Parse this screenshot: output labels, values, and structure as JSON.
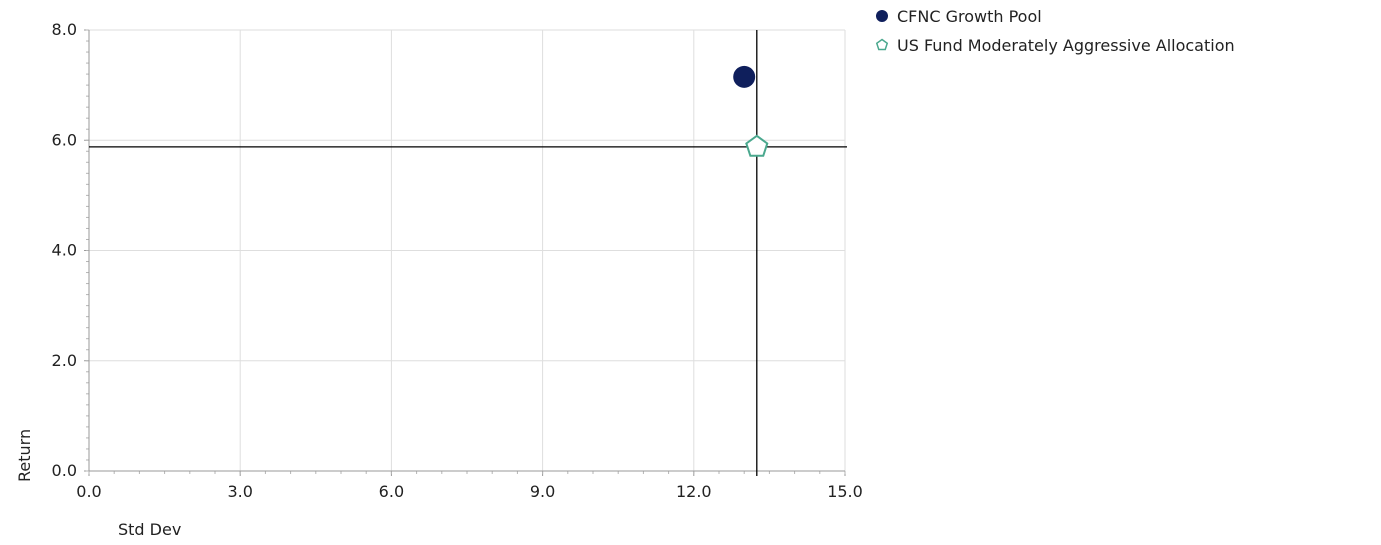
{
  "chart_data": {
    "type": "scatter",
    "xlabel": "Std Dev",
    "ylabel": "Return",
    "xlim": [
      0,
      15
    ],
    "ylim": [
      0,
      8
    ],
    "x_ticks": [
      "0.0",
      "3.0",
      "6.0",
      "9.0",
      "12.0",
      "15.0"
    ],
    "y_ticks": [
      "0.0",
      "2.0",
      "4.0",
      "6.0",
      "8.0"
    ],
    "grid": true,
    "legend_position": "top-right",
    "series": [
      {
        "name": "CFNC Growth Pool",
        "marker": "circle",
        "color": "#0f1f5c",
        "x": [
          13.0
        ],
        "y": [
          7.15
        ]
      },
      {
        "name": "US Fund Moderately Aggressive Allocation",
        "marker": "pentagon",
        "color": "#4aa88e",
        "x": [
          13.25
        ],
        "y": [
          5.88
        ]
      }
    ],
    "reference_lines": {
      "x": 13.25,
      "y": 5.88,
      "color": "#000000"
    }
  }
}
